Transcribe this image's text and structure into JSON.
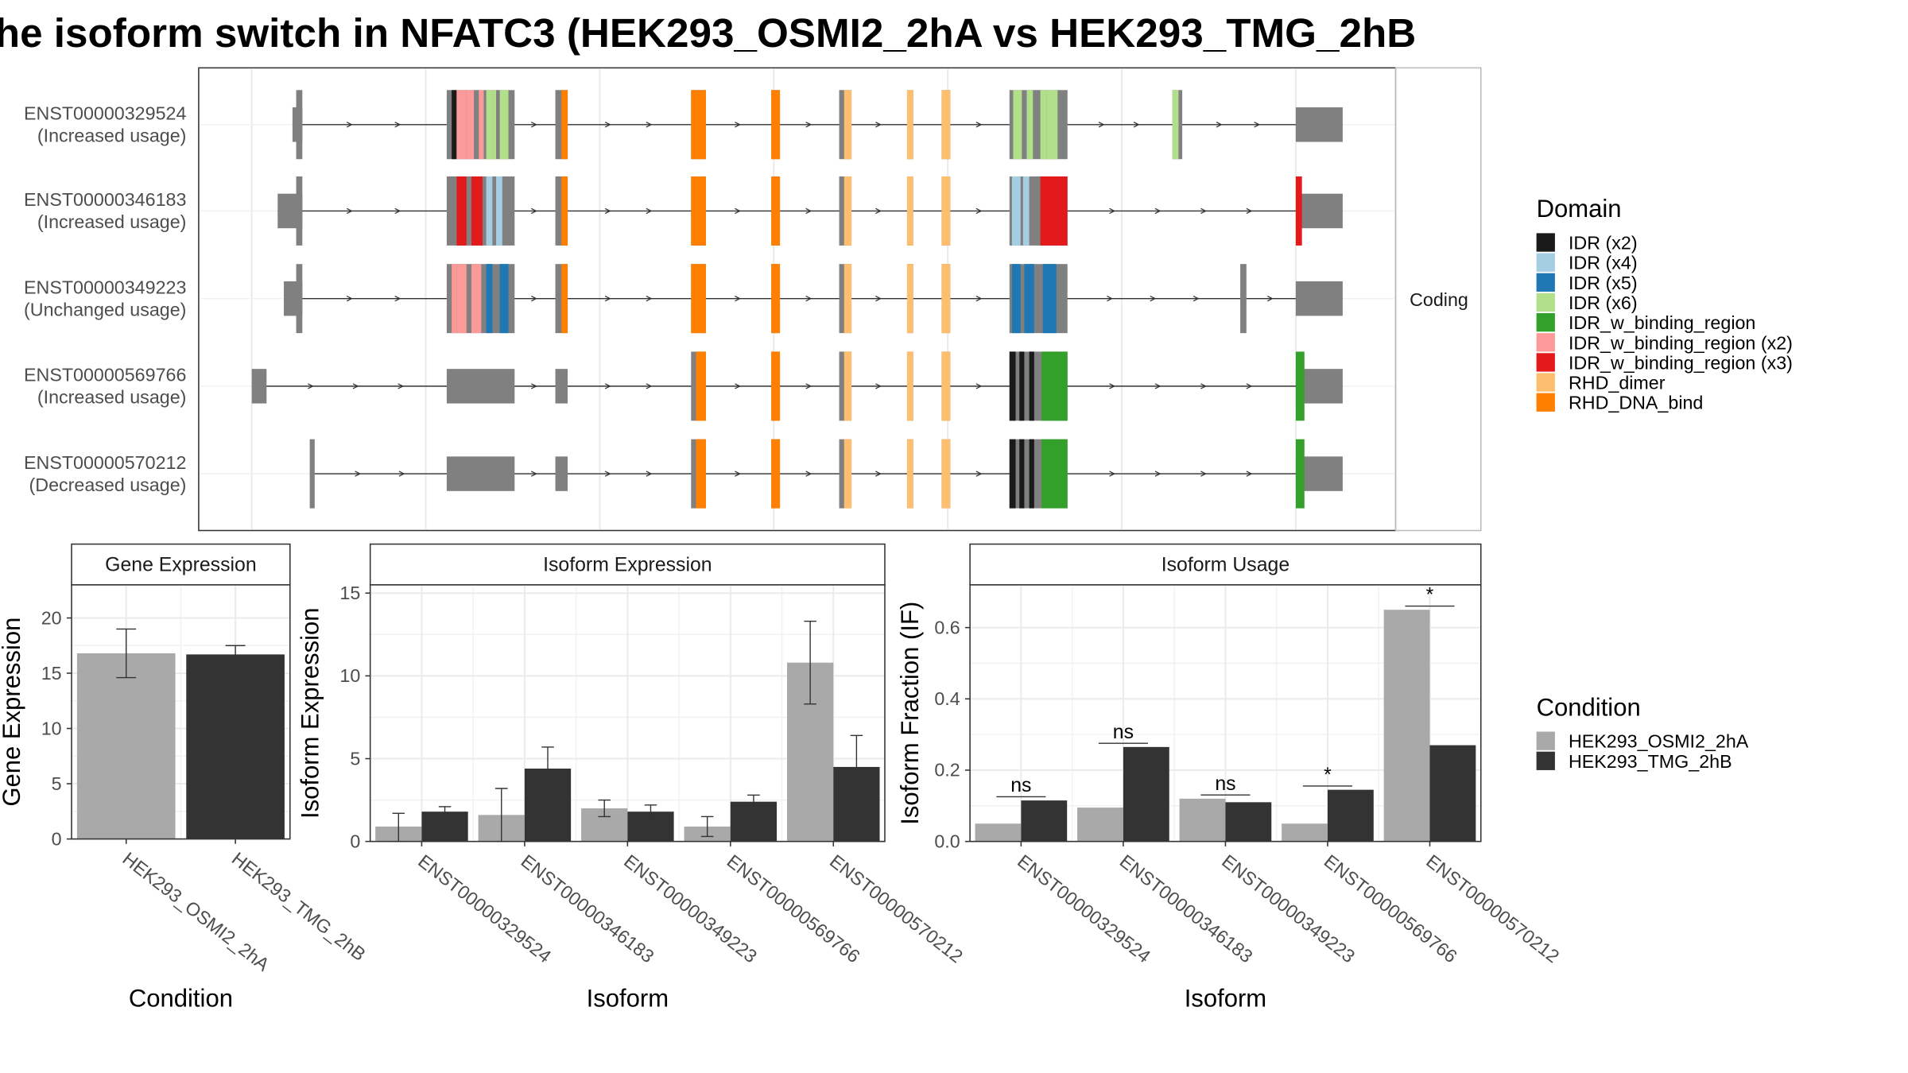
{
  "title": "he isoform switch in NFATC3 (HEK293_OSMI2_2hA vs HEK293_TMG_2hB",
  "colors": {
    "cond_a": "#a9a9a9",
    "cond_b": "#333333",
    "intron_exon": "#808080",
    "domain": {
      "IDR (x2)": "#1a1a1a",
      "IDR (x4)": "#a6cee3",
      "IDR (x5)": "#1f78b4",
      "IDR (x6)": "#b2df8a",
      "IDR_w_binding_region": "#33a02c",
      "IDR_w_binding_region (x2)": "#fb9a99",
      "IDR_w_binding_region (x3)": "#e31a1c",
      "RHD_dimer": "#fdbf6f",
      "RHD_DNA_bind": "#ff7f00"
    }
  },
  "structure": {
    "facet_label": "Coding",
    "isoforms": [
      {
        "id": "ENST00000329524",
        "usage": "(Increased usage)"
      },
      {
        "id": "ENST00000346183",
        "usage": "(Increased usage)"
      },
      {
        "id": "ENST00000349223",
        "usage": "(Unchanged usage)"
      },
      {
        "id": "ENST00000569766",
        "usage": "(Increased usage)"
      },
      {
        "id": "ENST00000570212",
        "usage": "(Decreased usage)"
      }
    ]
  },
  "legend_domain": {
    "title": "Domain",
    "items": [
      "IDR (x2)",
      "IDR (x4)",
      "IDR (x5)",
      "IDR (x6)",
      "IDR_w_binding_region",
      "IDR_w_binding_region (x2)",
      "IDR_w_binding_region (x3)",
      "RHD_dimer",
      "RHD_DNA_bind"
    ]
  },
  "legend_condition": {
    "title": "Condition",
    "items": [
      "HEK293_OSMI2_2hA",
      "HEK293_TMG_2hB"
    ]
  },
  "chart_data": [
    {
      "type": "bar",
      "title": "Gene Expression",
      "xlabel": "Condition",
      "ylabel": "Gene Expression",
      "ylim": [
        0,
        23
      ],
      "yticks": [
        0,
        5,
        10,
        15,
        20
      ],
      "categories": [
        "HEK293_OSMI2_2hA",
        "HEK293_TMG_2hB"
      ],
      "values": [
        16.8,
        16.7
      ],
      "error_low": [
        14.6,
        15.9
      ],
      "error_high": [
        19.0,
        17.5
      ]
    },
    {
      "type": "bar",
      "title": "Isoform Expression",
      "xlabel": "Isoform",
      "ylabel": "Isoform Expression",
      "ylim": [
        0,
        15.5
      ],
      "yticks": [
        0,
        5,
        10,
        15
      ],
      "categories": [
        "ENST00000329524",
        "ENST00000346183",
        "ENST00000349223",
        "ENST00000569766",
        "ENST00000570212"
      ],
      "series": [
        {
          "name": "HEK293_OSMI2_2hA",
          "values": [
            0.9,
            1.6,
            2.0,
            0.9,
            10.8
          ],
          "error_low": [
            0.0,
            0.0,
            1.5,
            0.3,
            8.3
          ],
          "error_high": [
            1.7,
            3.2,
            2.5,
            1.5,
            13.3
          ]
        },
        {
          "name": "HEK293_TMG_2hB",
          "values": [
            1.8,
            4.4,
            1.8,
            2.4,
            4.5
          ],
          "error_low": [
            1.5,
            3.1,
            1.4,
            2.0,
            2.6
          ],
          "error_high": [
            2.1,
            5.7,
            2.2,
            2.8,
            6.4
          ]
        }
      ]
    },
    {
      "type": "bar",
      "title": "Isoform Usage",
      "xlabel": "Isoform",
      "ylabel": "Isoform Fraction (IF)",
      "ylim": [
        0,
        0.72
      ],
      "yticks": [
        0.0,
        0.2,
        0.4,
        0.6
      ],
      "categories": [
        "ENST00000329524",
        "ENST00000346183",
        "ENST00000349223",
        "ENST00000569766",
        "ENST00000570212"
      ],
      "series": [
        {
          "name": "HEK293_OSMI2_2hA",
          "values": [
            0.05,
            0.095,
            0.12,
            0.05,
            0.65
          ]
        },
        {
          "name": "HEK293_TMG_2hB",
          "values": [
            0.115,
            0.265,
            0.11,
            0.145,
            0.27
          ]
        }
      ],
      "significance": [
        "ns",
        "ns",
        "ns",
        "*",
        "*"
      ]
    }
  ]
}
